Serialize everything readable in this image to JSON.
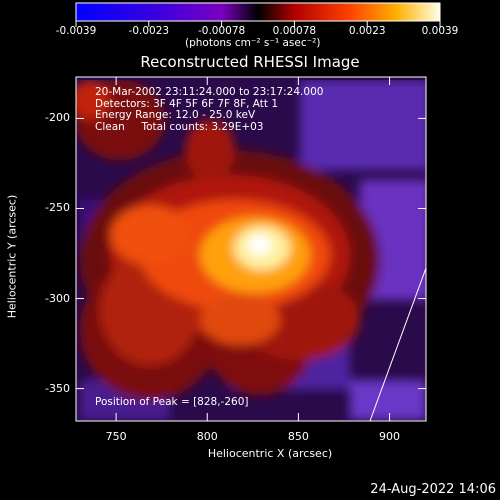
{
  "colorbar": {
    "tick_labels": [
      "-0.0039",
      "-0.0023",
      "-0.00078",
      "0.00078",
      "0.0023",
      "0.0039"
    ],
    "units_text": "(photons cm⁻² s⁻¹ asec⁻²)"
  },
  "plot": {
    "title": "Reconstructed RHESSI Image",
    "info_lines": [
      "20-Mar-2002 23:11:24.000 to 23:17:24.000",
      "Detectors: 3F 4F 5F 6F 7F 8F, Att 1",
      "Energy Range: 12.0 - 25.0 keV",
      "Clean     Total counts: 3.29E+03"
    ],
    "peak_text": "Position of Peak = [828,-260]",
    "xlabel": "Heliocentric X (arcsec)",
    "ylabel": "Heliocentric Y (arcsec)",
    "x_ticks": [
      "750",
      "800",
      "850",
      "900"
    ],
    "y_ticks": [
      "-200",
      "-250",
      "-300",
      "-350"
    ],
    "x_range": [
      728,
      920
    ],
    "y_range": [
      -368,
      -177
    ],
    "x_tick_values": [
      750,
      800,
      850,
      900
    ],
    "y_tick_values": [
      -200,
      -250,
      -300,
      -350
    ]
  },
  "timestamp": "24-Aug-2022 14:06"
}
